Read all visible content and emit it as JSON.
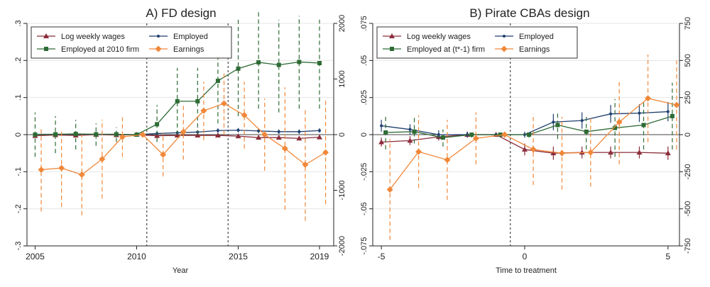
{
  "colors": {
    "wages": "#8b2d3b",
    "employed": "#1f3f6e",
    "employed_firm": "#2e6b35",
    "earnings": "#f0883a",
    "grid": "#e6e6e6",
    "axis": "#222222"
  },
  "chart_data": [
    {
      "type": "line",
      "title": "A) FD design",
      "xlabel": "Year",
      "ylabel": "",
      "xlim": [
        2004.6,
        2019.7
      ],
      "ylim": [
        -0.3,
        0.3
      ],
      "y2lim": [
        -2000,
        2000
      ],
      "xticks": [
        "2005",
        "2010",
        "2015",
        "2019"
      ],
      "xtick_values": [
        2005,
        2010,
        2015,
        2019
      ],
      "yticks": [
        "-.3",
        "-.2",
        "-.1",
        "0",
        ".1",
        ".2",
        ".3"
      ],
      "ytick_values": [
        -0.3,
        -0.2,
        -0.1,
        0,
        0.1,
        0.2,
        0.3
      ],
      "y2ticks": [
        "-2000",
        "-1000",
        "0",
        "1000",
        "2000"
      ],
      "y2tick_values": [
        -2000,
        -1000,
        0,
        1000,
        2000
      ],
      "vlines": [
        2010.5,
        2014.5
      ],
      "legend": [
        "Log weekly wages",
        "Employed",
        "Employed at 2010 firm",
        "Earnings"
      ],
      "legend_position": "top-left",
      "grid": true,
      "series": [
        {
          "name": "Log weekly wages",
          "key": "wages",
          "axis": "left",
          "marker": "triangle",
          "ci_dash": false,
          "x": [
            2005,
            2006,
            2007,
            2008,
            2009,
            2010,
            2011,
            2012,
            2013,
            2014,
            2015,
            2016,
            2017,
            2018,
            2019
          ],
          "y": [
            -0.003,
            -0.001,
            -0.002,
            0.0,
            -0.001,
            0.0,
            -0.003,
            -0.002,
            -0.002,
            -0.002,
            -0.004,
            -0.008,
            -0.008,
            -0.01,
            -0.007
          ],
          "lo": [
            -0.006,
            -0.004,
            -0.005,
            -0.003,
            -0.004,
            0.0,
            -0.006,
            -0.005,
            -0.005,
            -0.005,
            -0.008,
            -0.012,
            -0.012,
            -0.015,
            -0.012
          ],
          "hi": [
            0.0,
            0.002,
            0.001,
            0.003,
            0.002,
            0.0,
            0.0,
            0.001,
            0.001,
            0.001,
            0.0,
            -0.004,
            -0.004,
            -0.005,
            -0.002
          ]
        },
        {
          "name": "Employed",
          "key": "employed",
          "axis": "left",
          "marker": "circle",
          "ci_dash": false,
          "x": [
            2005,
            2006,
            2007,
            2008,
            2009,
            2010,
            2011,
            2012,
            2013,
            2014,
            2015,
            2016,
            2017,
            2018,
            2019
          ],
          "y": [
            0.001,
            0.001,
            0.001,
            0.001,
            0.001,
            0.0,
            0.003,
            0.005,
            0.007,
            0.011,
            0.012,
            0.01,
            0.008,
            0.008,
            0.011
          ],
          "lo": [
            -0.002,
            -0.002,
            -0.002,
            -0.002,
            -0.002,
            0.0,
            -0.001,
            0.001,
            0.002,
            0.005,
            0.006,
            0.004,
            0.002,
            0.002,
            0.005
          ],
          "hi": [
            0.004,
            0.004,
            0.004,
            0.004,
            0.004,
            0.0,
            0.007,
            0.009,
            0.012,
            0.017,
            0.018,
            0.016,
            0.014,
            0.014,
            0.017
          ]
        },
        {
          "name": "Employed at 2010 firm",
          "key": "employed_firm",
          "axis": "left",
          "marker": "square",
          "ci_dash": true,
          "x": [
            2005,
            2006,
            2007,
            2008,
            2009,
            2010,
            2011,
            2012,
            2013,
            2014,
            2015,
            2016,
            2017,
            2018,
            2019
          ],
          "y": [
            0.0,
            0.001,
            0.002,
            0.001,
            0.001,
            0.0,
            0.028,
            0.09,
            0.09,
            0.145,
            0.178,
            0.195,
            0.188,
            0.196,
            0.193
          ],
          "lo": [
            -0.06,
            -0.05,
            -0.04,
            -0.03,
            -0.02,
            0.0,
            -0.02,
            0.0,
            0.0,
            0.03,
            0.05,
            0.07,
            0.06,
            0.07,
            0.07
          ],
          "hi": [
            0.06,
            0.05,
            0.04,
            0.03,
            0.02,
            0.0,
            0.08,
            0.18,
            0.18,
            0.26,
            0.31,
            0.33,
            0.31,
            0.32,
            0.31
          ]
        },
        {
          "name": "Earnings",
          "key": "earnings",
          "axis": "right",
          "marker": "diamond",
          "ci_dash": true,
          "x": [
            2005.3,
            2006.3,
            2007.3,
            2008.3,
            2009.3,
            2010.3,
            2011.3,
            2012.3,
            2013.3,
            2014.3,
            2015.3,
            2016.3,
            2017.3,
            2018.3,
            2019.3
          ],
          "y": [
            -630,
            -600,
            -720,
            -440,
            -40,
            0,
            -360,
            50,
            430,
            560,
            350,
            0,
            -250,
            -540,
            -320
          ],
          "lo": [
            -1380,
            -1300,
            -1450,
            -1150,
            -400,
            0,
            -750,
            -450,
            -100,
            0,
            -250,
            -650,
            -1350,
            -1550,
            -1250
          ],
          "hi": [
            100,
            100,
            0,
            270,
            320,
            0,
            40,
            550,
            950,
            1150,
            950,
            650,
            850,
            460,
            610
          ]
        }
      ]
    },
    {
      "type": "line",
      "title": "B) Pirate CBAs design",
      "xlabel": "Time to treatment",
      "ylabel": "",
      "xlim": [
        -5.3,
        5.4
      ],
      "ylim": [
        -0.075,
        0.075
      ],
      "y2lim": [
        -750,
        750
      ],
      "xticks": [
        "-5",
        "0",
        "5"
      ],
      "xtick_values": [
        -5,
        0,
        5
      ],
      "yticks": [
        "-.075",
        "-.05",
        "-.025",
        "0",
        ".025",
        ".05",
        ".075"
      ],
      "ytick_values": [
        -0.075,
        -0.05,
        -0.025,
        0,
        0.025,
        0.05,
        0.075
      ],
      "y2ticks": [
        "-750",
        "-500",
        "-250",
        "0",
        "250",
        "500",
        "750"
      ],
      "y2tick_values": [
        -750,
        -500,
        -250,
        0,
        250,
        500,
        750
      ],
      "vlines": [
        -0.5
      ],
      "legend": [
        "Log weekly wages",
        "Employed",
        "Employed at (t*-1) firm",
        "Earnings"
      ],
      "legend_position": "top-left",
      "grid": true,
      "series": [
        {
          "name": "Log weekly wages",
          "key": "wages",
          "axis": "left",
          "marker": "triangle",
          "ci_dash": false,
          "x": [
            -5,
            -4,
            -3,
            -2,
            -1,
            0,
            1,
            2,
            3,
            4,
            5
          ],
          "y": [
            -0.005,
            -0.004,
            -0.0015,
            0.0,
            0.0,
            -0.01,
            -0.0125,
            -0.012,
            -0.012,
            -0.012,
            -0.0125
          ],
          "lo": [
            -0.008,
            -0.007,
            -0.004,
            -0.002,
            0.0,
            -0.014,
            -0.017,
            -0.016,
            -0.016,
            -0.016,
            -0.017
          ],
          "hi": [
            -0.002,
            -0.001,
            0.001,
            0.002,
            0.0,
            -0.006,
            -0.008,
            -0.008,
            -0.008,
            -0.008,
            -0.008
          ]
        },
        {
          "name": "Employed",
          "key": "employed",
          "axis": "left",
          "marker": "circle",
          "ci_dash": false,
          "x": [
            -5,
            -4,
            -3,
            -2,
            -1,
            0,
            1,
            2,
            3,
            4,
            5
          ],
          "y": [
            0.006,
            0.0035,
            0.0,
            0.0,
            0.0,
            0.0,
            0.0085,
            0.0095,
            0.014,
            0.0145,
            0.0155
          ],
          "lo": [
            0.002,
            0.0,
            -0.003,
            -0.002,
            0.0,
            -0.002,
            0.003,
            0.004,
            0.008,
            0.0085,
            0.009
          ],
          "hi": [
            0.01,
            0.007,
            0.003,
            0.002,
            0.0,
            0.002,
            0.014,
            0.015,
            0.02,
            0.0205,
            0.022
          ]
        },
        {
          "name": "Employed at (t*-1) firm",
          "key": "employed_firm",
          "axis": "left",
          "marker": "square",
          "ci_dash": true,
          "x": [
            -4.85,
            -3.85,
            -2.85,
            -1.85,
            -0.85,
            0.15,
            1.15,
            2.15,
            3.15,
            4.15,
            5.15
          ],
          "y": [
            0.0015,
            0.002,
            -0.002,
            0.0,
            0.0,
            0.0,
            0.0065,
            0.002,
            0.0045,
            0.0065,
            0.0125
          ],
          "lo": [
            -0.01,
            -0.006,
            -0.008,
            -0.002,
            0.0,
            -0.002,
            -0.003,
            -0.01,
            -0.015,
            -0.01,
            -0.01
          ],
          "hi": [
            0.0125,
            0.0125,
            0.0035,
            0.002,
            0.0,
            0.002,
            0.016,
            0.014,
            0.024,
            0.023,
            0.035
          ]
        },
        {
          "name": "Earnings",
          "key": "earnings",
          "axis": "right",
          "marker": "diamond",
          "ci_dash": true,
          "x": [
            -4.7,
            -3.7,
            -2.7,
            -1.7,
            -0.7,
            0.3,
            1.3,
            2.3,
            3.3,
            4.3,
            5.3
          ],
          "y": [
            -370,
            -115,
            -170,
            -25,
            0,
            -100,
            -125,
            -120,
            85,
            245,
            200
          ],
          "lo": [
            -710,
            -360,
            -440,
            -200,
            0,
            -340,
            -370,
            -350,
            -200,
            -50,
            -100
          ],
          "hi": [
            -30,
            130,
            100,
            150,
            0,
            140,
            120,
            110,
            370,
            540,
            500
          ]
        }
      ]
    }
  ]
}
